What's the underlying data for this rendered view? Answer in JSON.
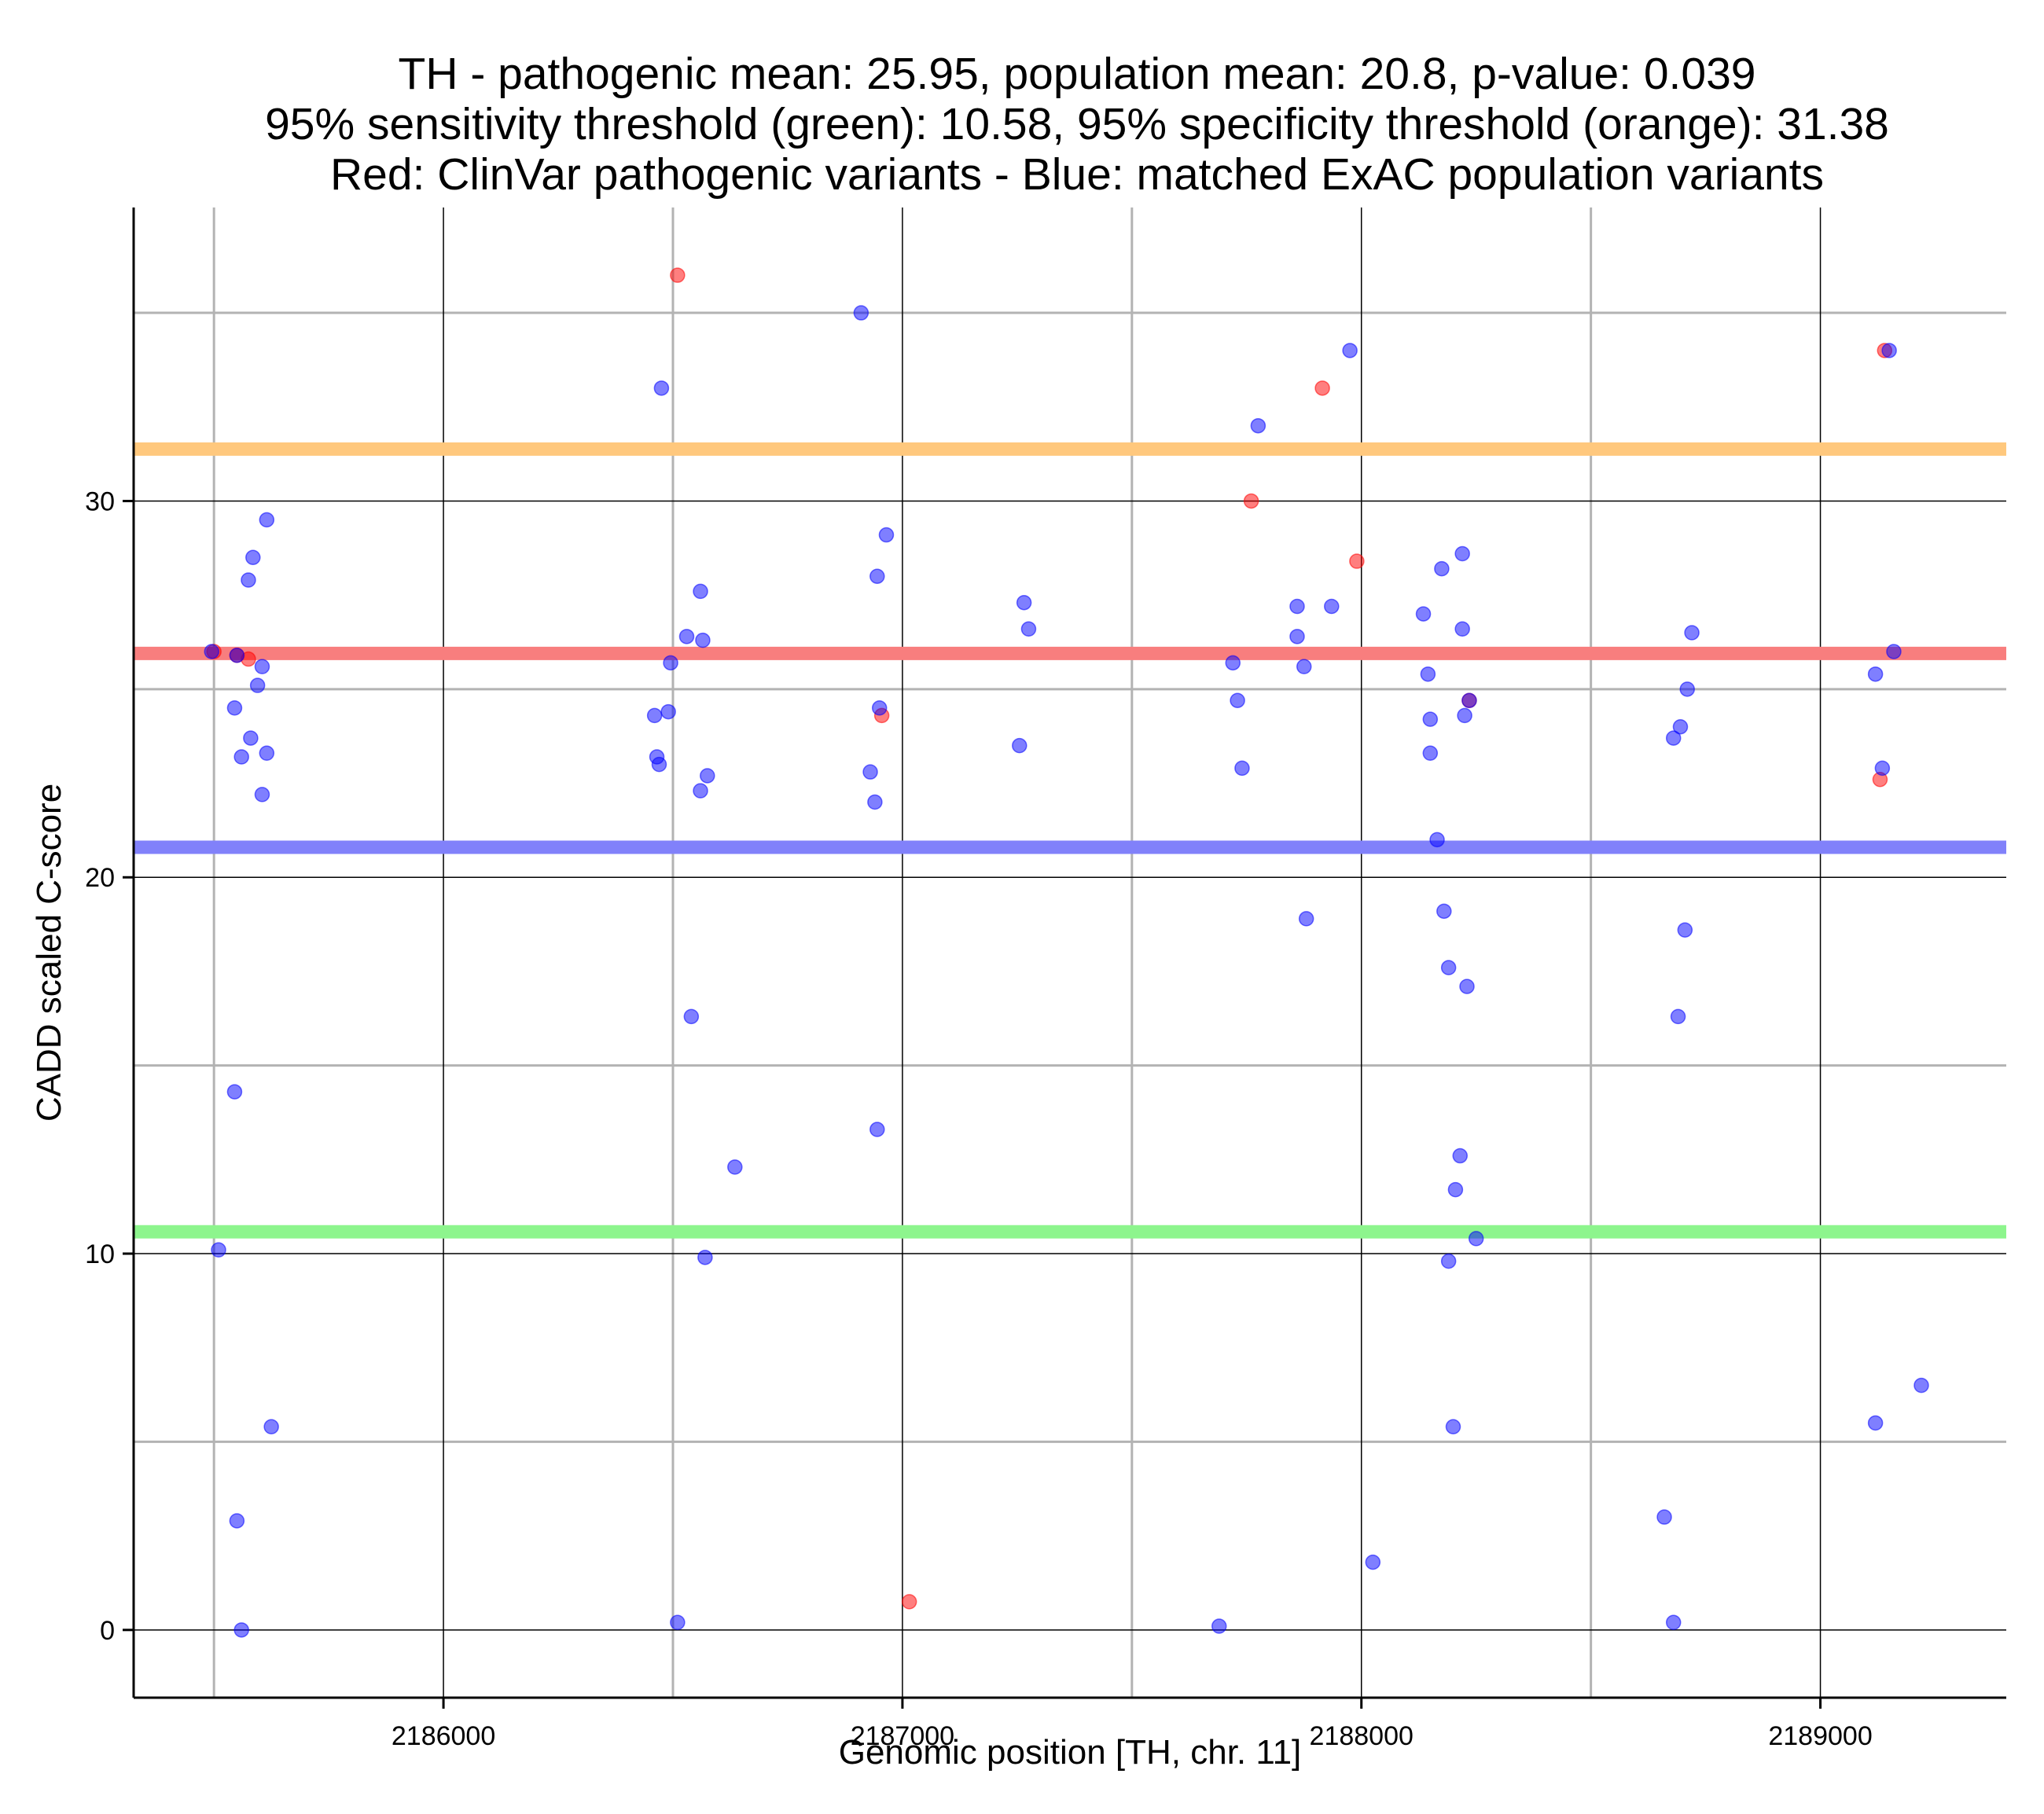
{
  "chart_data": {
    "type": "scatter",
    "title_lines": [
      "TH - pathogenic mean: 25.95, population mean: 20.8, p-value: 0.039",
      "95% sensitivity threshold (green): 10.58, 95% specificity threshold (orange): 31.38",
      "Red: ClinVar pathogenic variants - Blue: matched ExAC population variants"
    ],
    "xlabel": "Genomic position [TH, chr. 11]",
    "ylabel": "CADD scaled C-score",
    "xlim": [
      2185325,
      2189405
    ],
    "ylim": [
      -1.8,
      37.8
    ],
    "x_ticks": [
      2186000,
      2187000,
      2188000,
      2189000
    ],
    "x_minor": [
      2185500,
      2186500,
      2187500,
      2188500
    ],
    "y_ticks": [
      0,
      10,
      20,
      30
    ],
    "y_minor": [
      5,
      15,
      25,
      35
    ],
    "hlines": [
      {
        "name": "specificity-threshold",
        "value": 31.38,
        "color": "#ffc87d"
      },
      {
        "name": "pathogenic-mean",
        "value": 25.95,
        "color": "#f87e7e"
      },
      {
        "name": "population-mean",
        "value": 20.8,
        "color": "#8181fa"
      },
      {
        "name": "sensitivity-threshold",
        "value": 10.58,
        "color": "#8df58d"
      }
    ],
    "series": [
      {
        "name": "ClinVar pathogenic variants",
        "color": "#ff0000",
        "points": [
          [
            2185500,
            26.0
          ],
          [
            2185550,
            25.9
          ],
          [
            2185575,
            25.8
          ],
          [
            2186510,
            36.0
          ],
          [
            2186955,
            24.3
          ],
          [
            2187015,
            0.75
          ],
          [
            2187760,
            30.0
          ],
          [
            2187915,
            33.0
          ],
          [
            2187990,
            28.4
          ],
          [
            2188235,
            24.7
          ],
          [
            2189130,
            22.6
          ],
          [
            2189140,
            34.0
          ]
        ]
      },
      {
        "name": "matched ExAC population variants",
        "color": "#0000ff",
        "points": [
          [
            2185495,
            26.0
          ],
          [
            2185550,
            25.9
          ],
          [
            2185545,
            24.5
          ],
          [
            2185595,
            25.1
          ],
          [
            2185585,
            28.5
          ],
          [
            2185575,
            27.9
          ],
          [
            2185615,
            29.5
          ],
          [
            2185605,
            25.6
          ],
          [
            2185580,
            23.7
          ],
          [
            2185560,
            23.2
          ],
          [
            2185615,
            23.3
          ],
          [
            2185605,
            22.2
          ],
          [
            2185545,
            14.3
          ],
          [
            2185510,
            10.1
          ],
          [
            2185625,
            5.4
          ],
          [
            2185550,
            2.9
          ],
          [
            2185560,
            0.0
          ],
          [
            2186475,
            33.0
          ],
          [
            2186495,
            25.7
          ],
          [
            2186530,
            26.4
          ],
          [
            2186560,
            27.6
          ],
          [
            2186565,
            26.3
          ],
          [
            2186460,
            24.3
          ],
          [
            2186490,
            24.4
          ],
          [
            2186465,
            23.2
          ],
          [
            2186470,
            23.0
          ],
          [
            2186575,
            22.7
          ],
          [
            2186560,
            22.3
          ],
          [
            2186540,
            16.3
          ],
          [
            2186635,
            12.3
          ],
          [
            2186570,
            9.9
          ],
          [
            2186510,
            0.2
          ],
          [
            2186910,
            35.0
          ],
          [
            2186965,
            29.1
          ],
          [
            2186945,
            28.0
          ],
          [
            2186950,
            24.5
          ],
          [
            2186930,
            22.8
          ],
          [
            2186940,
            22.0
          ],
          [
            2186945,
            13.3
          ],
          [
            2187265,
            27.3
          ],
          [
            2187275,
            26.6
          ],
          [
            2187255,
            23.5
          ],
          [
            2187775,
            32.0
          ],
          [
            2187720,
            25.7
          ],
          [
            2187730,
            24.7
          ],
          [
            2187740,
            22.9
          ],
          [
            2187690,
            0.1
          ],
          [
            2187975,
            34.0
          ],
          [
            2187860,
            27.2
          ],
          [
            2187935,
            27.2
          ],
          [
            2187860,
            26.4
          ],
          [
            2187875,
            25.6
          ],
          [
            2187880,
            18.9
          ],
          [
            2188025,
            1.8
          ],
          [
            2188135,
            27.0
          ],
          [
            2188175,
            28.2
          ],
          [
            2188220,
            28.6
          ],
          [
            2188220,
            26.6
          ],
          [
            2188145,
            25.4
          ],
          [
            2188150,
            24.2
          ],
          [
            2188225,
            24.3
          ],
          [
            2188235,
            24.7
          ],
          [
            2188150,
            23.3
          ],
          [
            2188165,
            21.0
          ],
          [
            2188180,
            19.1
          ],
          [
            2188190,
            17.6
          ],
          [
            2188230,
            17.1
          ],
          [
            2188215,
            12.6
          ],
          [
            2188205,
            11.7
          ],
          [
            2188250,
            10.4
          ],
          [
            2188190,
            9.8
          ],
          [
            2188200,
            5.4
          ],
          [
            2188720,
            26.5
          ],
          [
            2188710,
            25.0
          ],
          [
            2188695,
            24.0
          ],
          [
            2188680,
            23.7
          ],
          [
            2188705,
            18.6
          ],
          [
            2188690,
            16.3
          ],
          [
            2188660,
            3.0
          ],
          [
            2188680,
            0.2
          ],
          [
            2189120,
            25.4
          ],
          [
            2189135,
            22.9
          ],
          [
            2189150,
            34.0
          ],
          [
            2189160,
            26.0
          ],
          [
            2189120,
            5.5
          ],
          [
            2189220,
            6.5
          ]
        ]
      }
    ]
  }
}
